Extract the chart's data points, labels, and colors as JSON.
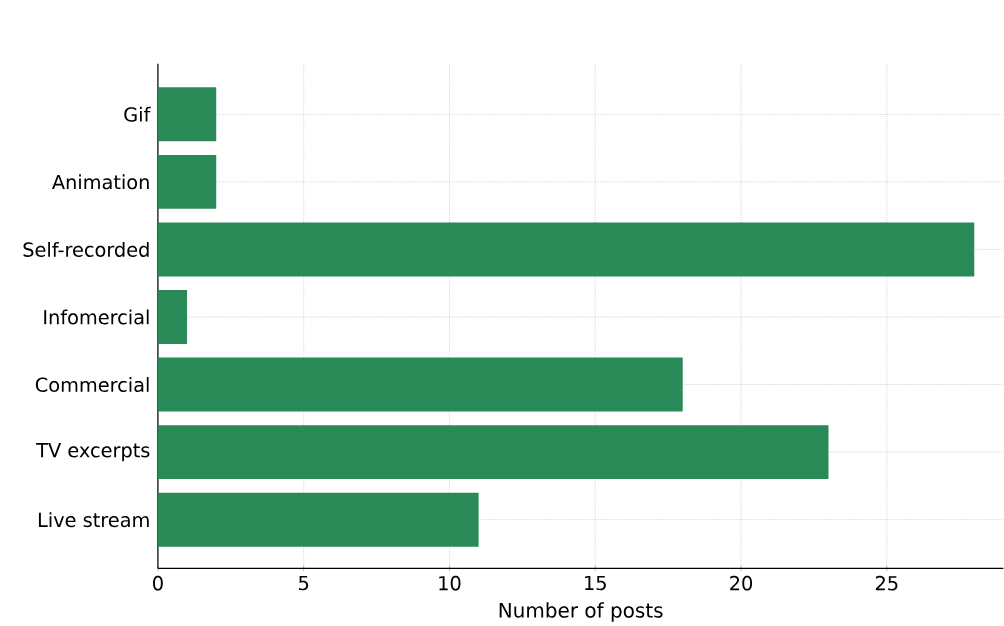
{
  "chart_data": {
    "type": "bar",
    "orientation": "horizontal",
    "categories": [
      "Gif",
      "Animation",
      "Self-recorded",
      "Infomercial",
      "Commercial",
      "TV excerpts",
      "Live stream"
    ],
    "values": [
      2,
      2,
      28,
      1,
      18,
      23,
      11
    ],
    "color": "#2a8a57",
    "xlim": [
      0,
      29
    ],
    "xticks": [
      0,
      5,
      10,
      15,
      20,
      25
    ],
    "xlabel": "Number of posts",
    "grid": true
  }
}
